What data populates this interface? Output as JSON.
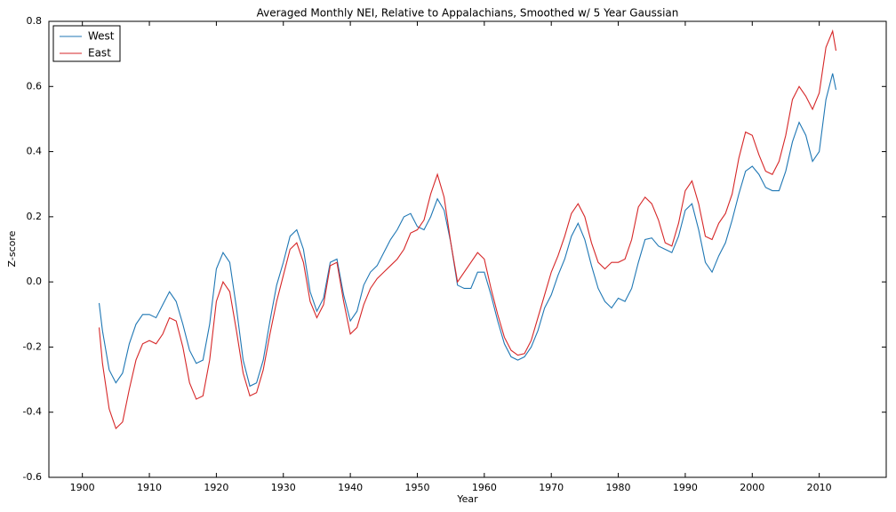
{
  "chart_data": {
    "type": "line",
    "title": "Averaged Monthly NEI, Relative to Appalachians, Smoothed w/ 5 Year Gaussian",
    "x_label": "Year",
    "y_label": "Z-score",
    "xlim": [
      1895,
      2020
    ],
    "ylim": [
      -0.6,
      0.8
    ],
    "xticks": [
      1900,
      1910,
      1920,
      1930,
      1940,
      1950,
      1960,
      1970,
      1980,
      1990,
      2000,
      2010
    ],
    "yticks": [
      -0.6,
      -0.4,
      -0.2,
      {
        "value": 0,
        "label": "0.0"
      },
      0.2,
      0.4,
      0.6,
      0.8
    ],
    "grid": false,
    "legend": "upper left",
    "x": [
      1902.5,
      1903,
      1904,
      1905,
      1906,
      1907,
      1908,
      1909,
      1910,
      1911,
      1912,
      1913,
      1914,
      1915,
      1916,
      1917,
      1918,
      1919,
      1920,
      1921,
      1922,
      1923,
      1924,
      1925,
      1926,
      1927,
      1928,
      1929,
      1930,
      1931,
      1932,
      1933,
      1934,
      1935,
      1936,
      1937,
      1938,
      1939,
      1940,
      1941,
      1942,
      1943,
      1944,
      1945,
      1946,
      1947,
      1948,
      1949,
      1950,
      1951,
      1952,
      1953,
      1954,
      1955,
      1956,
      1957,
      1958,
      1959,
      1960,
      1961,
      1962,
      1963,
      1964,
      1965,
      1966,
      1967,
      1968,
      1969,
      1970,
      1971,
      1972,
      1973,
      1974,
      1975,
      1976,
      1977,
      1978,
      1979,
      1980,
      1981,
      1982,
      1983,
      1984,
      1985,
      1986,
      1987,
      1988,
      1989,
      1990,
      1991,
      1992,
      1993,
      1994,
      1995,
      1996,
      1997,
      1998,
      1999,
      2000,
      2001,
      2002,
      2003,
      2004,
      2005,
      2006,
      2007,
      2008,
      2009,
      2010,
      2011,
      2012,
      2012.5
    ],
    "series": [
      {
        "name": "West",
        "color": "#1f77b4",
        "values": [
          -0.065,
          -0.15,
          -0.27,
          -0.31,
          -0.28,
          -0.19,
          -0.13,
          -0.1,
          -0.1,
          -0.11,
          -0.07,
          -0.03,
          -0.06,
          -0.13,
          -0.21,
          -0.25,
          -0.24,
          -0.13,
          0.04,
          0.09,
          0.06,
          -0.08,
          -0.24,
          -0.32,
          -0.31,
          -0.24,
          -0.12,
          -0.01,
          0.06,
          0.14,
          0.16,
          0.1,
          -0.03,
          -0.09,
          -0.05,
          0.06,
          0.07,
          -0.04,
          -0.12,
          -0.09,
          -0.01,
          0.03,
          0.05,
          0.09,
          0.13,
          0.16,
          0.2,
          0.21,
          0.17,
          0.16,
          0.2,
          0.255,
          0.22,
          0.12,
          -0.01,
          -0.02,
          -0.02,
          0.03,
          0.03,
          -0.04,
          -0.12,
          -0.19,
          -0.23,
          -0.24,
          -0.23,
          -0.2,
          -0.15,
          -0.08,
          -0.04,
          0.02,
          0.07,
          0.14,
          0.18,
          0.13,
          0.05,
          -0.02,
          -0.06,
          -0.08,
          -0.05,
          -0.06,
          -0.02,
          0.06,
          0.13,
          0.135,
          0.11,
          0.1,
          0.09,
          0.14,
          0.22,
          0.24,
          0.16,
          0.06,
          0.03,
          0.08,
          0.12,
          0.19,
          0.27,
          0.34,
          0.355,
          0.33,
          0.29,
          0.28,
          0.28,
          0.34,
          0.43,
          0.49,
          0.45,
          0.37,
          0.4,
          0.56,
          0.64,
          0.59
        ]
      },
      {
        "name": "East",
        "color": "#d62728",
        "values": [
          -0.14,
          -0.25,
          -0.39,
          -0.45,
          -0.43,
          -0.33,
          -0.24,
          -0.19,
          -0.18,
          -0.19,
          -0.16,
          -0.11,
          -0.12,
          -0.2,
          -0.31,
          -0.36,
          -0.35,
          -0.24,
          -0.06,
          0.0,
          -0.03,
          -0.15,
          -0.28,
          -0.35,
          -0.34,
          -0.27,
          -0.16,
          -0.06,
          0.02,
          0.1,
          0.12,
          0.06,
          -0.06,
          -0.11,
          -0.07,
          0.05,
          0.06,
          -0.06,
          -0.16,
          -0.14,
          -0.07,
          -0.02,
          0.01,
          0.03,
          0.05,
          0.07,
          0.1,
          0.15,
          0.16,
          0.19,
          0.27,
          0.33,
          0.26,
          0.12,
          0.0,
          0.03,
          0.06,
          0.09,
          0.07,
          -0.02,
          -0.1,
          -0.17,
          -0.21,
          -0.225,
          -0.22,
          -0.18,
          -0.11,
          -0.04,
          0.03,
          0.08,
          0.14,
          0.21,
          0.24,
          0.2,
          0.12,
          0.06,
          0.04,
          0.06,
          0.06,
          0.07,
          0.13,
          0.23,
          0.26,
          0.24,
          0.19,
          0.12,
          0.11,
          0.18,
          0.28,
          0.31,
          0.24,
          0.14,
          0.13,
          0.18,
          0.21,
          0.27,
          0.38,
          0.46,
          0.45,
          0.39,
          0.34,
          0.33,
          0.37,
          0.45,
          0.56,
          0.6,
          0.57,
          0.53,
          0.58,
          0.72,
          0.77,
          0.71
        ]
      }
    ]
  }
}
